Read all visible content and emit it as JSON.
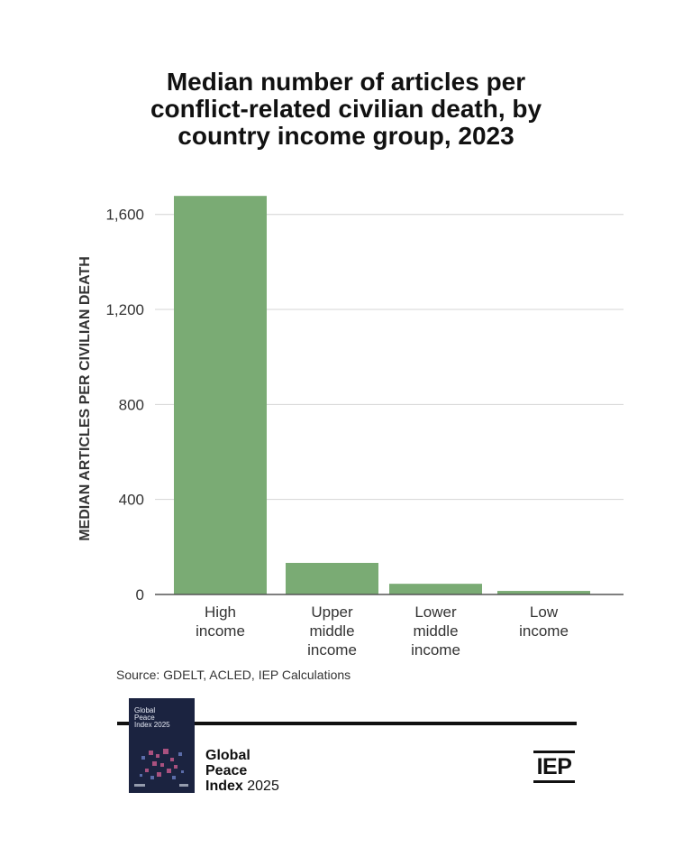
{
  "chart_data": {
    "type": "bar",
    "title_lines": [
      "Median number of articles per",
      "conflict-related civilian death, by",
      "country income group, 2023"
    ],
    "ylabel": "MEDIAN ARTICLES PER CIVILIAN DEATH",
    "xlabel": "",
    "categories": [
      [
        "High",
        "income"
      ],
      [
        "Upper",
        "middle",
        "income"
      ],
      [
        "Lower",
        "middle",
        "income"
      ],
      [
        "Low",
        "income"
      ]
    ],
    "values": [
      1678,
      133,
      45,
      15
    ],
    "yticks": [
      0,
      400,
      800,
      1200,
      1600
    ],
    "ytick_labels": [
      "0",
      "400",
      "800",
      "1,200",
      "1,600"
    ],
    "ylim": [
      0,
      1700
    ],
    "grid": true,
    "bar_color": "#7aab74",
    "grid_color": "#d4d4d4",
    "axis_color": "#555555"
  },
  "source": "Source: GDELT, ACLED, IEP Calculations",
  "footer": {
    "cover_title_lines": [
      "Global",
      "Peace",
      "Index 2025"
    ],
    "brand_line1": "Global",
    "brand_line2": "Peace",
    "brand_line3_bold": "Index",
    "brand_line3_rest": " 2025",
    "logo_text": "IEP",
    "cover_color": "#1b2340"
  }
}
